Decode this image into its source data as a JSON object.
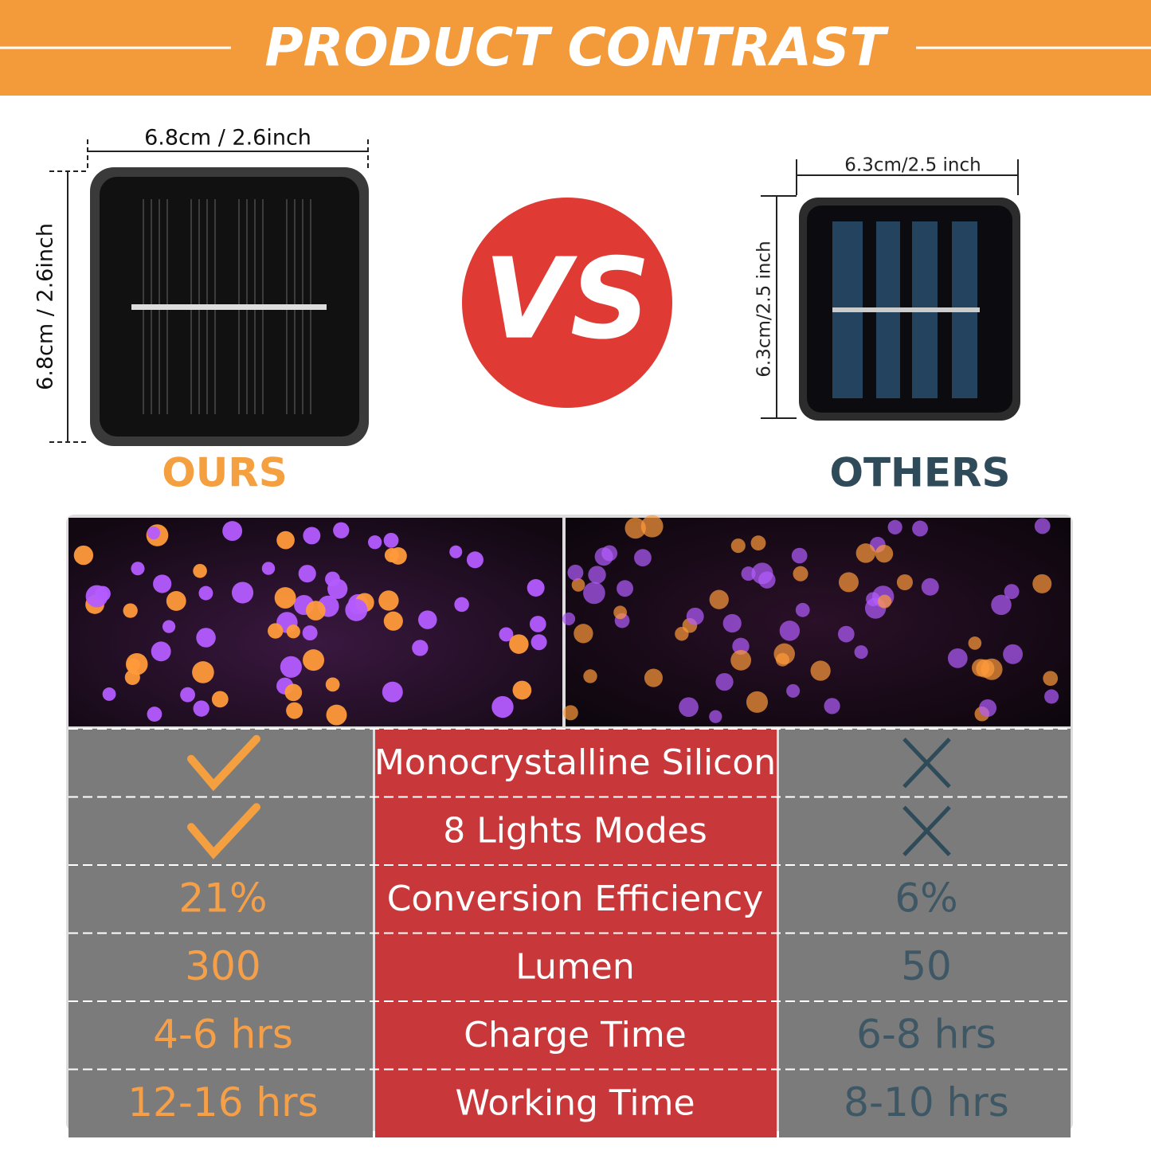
{
  "header": {
    "title": "PRODUCT CONTRAST"
  },
  "ours": {
    "label": "OURS",
    "width": "6.8cm / 2.6inch",
    "height": "6.8cm / 2.6inch"
  },
  "vs": "VS",
  "others": {
    "label": "OTHERS",
    "width": "6.3cm/2.5 inch",
    "height": "6.3cm/2.5 inch"
  },
  "table": {
    "rows": [
      {
        "feature": "Monocrystalline Silicon"
      },
      {
        "feature": "8 Lights Modes"
      },
      {
        "ours": "21%",
        "feature": "Conversion Efficiency",
        "others": "6%"
      },
      {
        "ours": "300",
        "feature": "Lumen",
        "others": "50"
      },
      {
        "ours": "4-6 hrs",
        "feature": "Charge Time",
        "others": "6-8 hrs"
      },
      {
        "ours": "12-16 hrs",
        "feature": "Working Time",
        "others": "8-10 hrs"
      }
    ]
  }
}
